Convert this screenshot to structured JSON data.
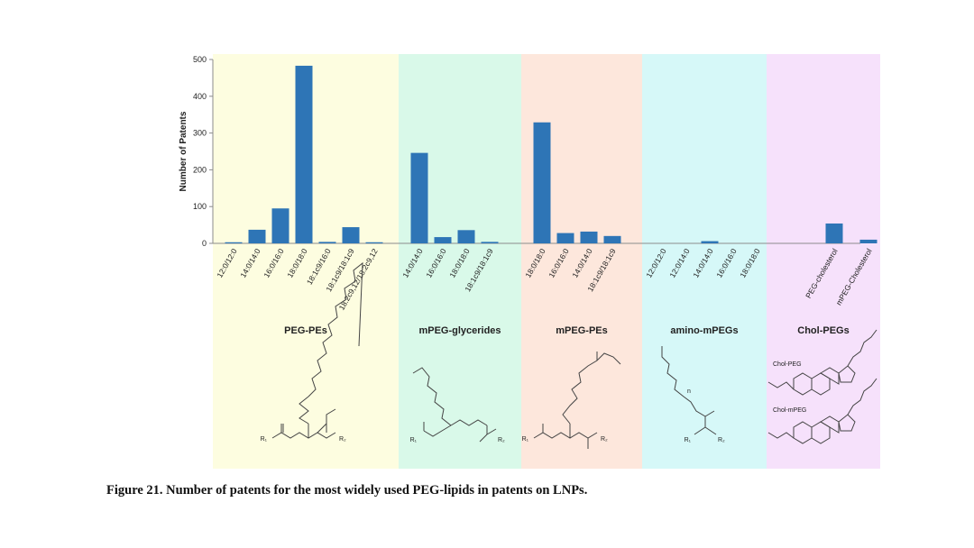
{
  "chart_data": {
    "type": "bar",
    "ylabel": "Number of Patents",
    "ylim": [
      0,
      500
    ],
    "yticks": [
      0,
      100,
      200,
      300,
      400,
      500
    ],
    "bar_color": "#2e75b6",
    "groups": [
      {
        "name": "PEG-PEs",
        "color": "#fdfde0",
        "categories": [
          "12:0/12:0",
          "14:0/14:0",
          "16:0/16:0",
          "18:0/18:0",
          "18:1c9/16:0",
          "18:1c9/18:1c9",
          "18:2c9,12/18:2c9,12"
        ],
        "values": [
          3,
          37,
          95,
          483,
          4,
          44,
          3
        ]
      },
      {
        "name": "mPEG-glycerides",
        "color": "#d9f9e9",
        "categories": [
          "14:0/14:0",
          "16:0/16:0",
          "18:0/18:0",
          "18:1c9/18:1c9"
        ],
        "values": [
          246,
          17,
          36,
          4
        ]
      },
      {
        "name": "mPEG-PEs",
        "color": "#fde7dc",
        "categories": [
          "18:0/18:0",
          "16:0/16:0",
          "14:0/14:0",
          "18:1c9/18:1c9"
        ],
        "values": [
          329,
          28,
          32,
          20
        ]
      },
      {
        "name": "amino-mPEGs",
        "color": "#d6f8f8",
        "categories": [
          "12:0/12:0",
          "12:0/14:0",
          "14:0/14:0",
          "16:0/16:0",
          "18:0/18:0"
        ],
        "values": [
          0,
          0,
          6,
          0,
          0
        ]
      },
      {
        "name": "Chol-PEGs",
        "color": "#f6e1fb",
        "categories": [
          "PEG-cholesterol",
          "mPEG-Cholesterol"
        ],
        "values": [
          54,
          10
        ]
      }
    ]
  },
  "structures": {
    "peg_pe": {
      "r1": "R₁",
      "r2": "R₂"
    },
    "mpeg_glyceride": {
      "r1": "R₁",
      "r2": "R₂"
    },
    "mpeg_pe": {
      "r1": "R₁",
      "r2": "R₂"
    },
    "amino_mpeg": {
      "r1": "R₁",
      "r2": "R₂",
      "n": "n"
    },
    "chol": {
      "label1": "Chol-PEG",
      "label2": "Chol-mPEG"
    }
  },
  "caption": "Figure 21. Number of patents for the most widely used PEG-lipids in patents on LNPs."
}
